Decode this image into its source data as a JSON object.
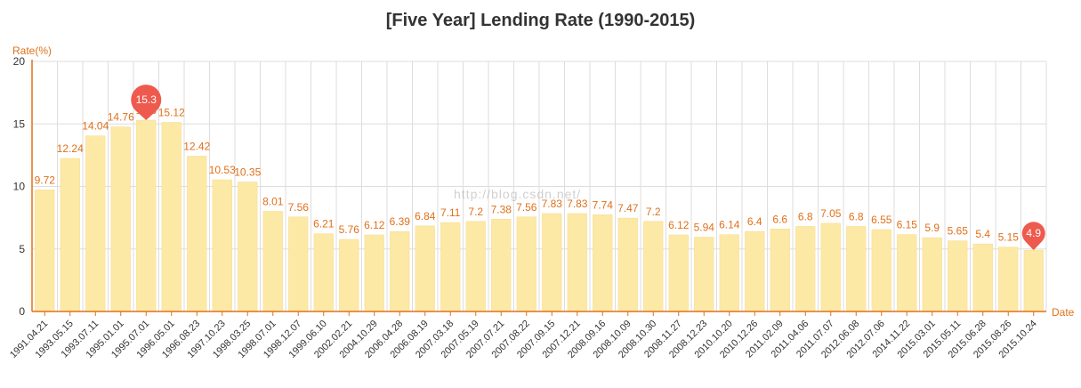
{
  "chart_data": {
    "type": "bar",
    "title": "[Five Year] Lending Rate (1990-2015)",
    "ylabel": "Rate(%)",
    "xlabel": "Date",
    "ylim": [
      0,
      20
    ],
    "yticks": [
      0,
      5,
      10,
      15,
      20
    ],
    "grid": true,
    "categories": [
      "1991.04.21",
      "1993.05.15",
      "1993.07.11",
      "1995.01.01",
      "1995.07.01",
      "1996.05.01",
      "1996.08.23",
      "1997.10.23",
      "1998.03.25",
      "1998.07.01",
      "1998.12.07",
      "1999.06.10",
      "2002.02.21",
      "2004.10.29",
      "2006.04.28",
      "2006.08.19",
      "2007.03.18",
      "2007.05.19",
      "2007.07.21",
      "2007.08.22",
      "2007.09.15",
      "2007.12.21",
      "2008.09.16",
      "2008.10.09",
      "2008.10.30",
      "2008.11.27",
      "2008.12.23",
      "2010.10.20",
      "2010.12.26",
      "2011.02.09",
      "2011.04.06",
      "2011.07.07",
      "2012.06.08",
      "2012.07.06",
      "2014.11.22",
      "2015.03.01",
      "2015.05.11",
      "2015.06.28",
      "2015.08.26",
      "2015.10.24"
    ],
    "values": [
      9.72,
      12.24,
      14.04,
      14.76,
      15.3,
      15.12,
      12.42,
      10.53,
      10.35,
      8.01,
      7.56,
      6.21,
      5.76,
      6.12,
      6.39,
      6.84,
      7.11,
      7.2,
      7.38,
      7.56,
      7.83,
      7.83,
      7.74,
      7.47,
      7.2,
      6.12,
      5.94,
      6.14,
      6.4,
      6.6,
      6.8,
      7.05,
      6.8,
      6.55,
      6.15,
      5.9,
      5.65,
      5.4,
      5.15,
      4.9
    ],
    "markers": [
      {
        "category": "1995.07.01",
        "label": "15.3",
        "kind": "max"
      },
      {
        "category": "2015.10.24",
        "label": "4.9",
        "kind": "min"
      }
    ],
    "colors": {
      "bar": "#fde9a6",
      "bar_stroke": "#f6d98a",
      "label": "#e0701a",
      "axis": "#e0701a",
      "grid": "#dddddd",
      "marker": "#ef5a4e"
    }
  },
  "watermark": "http://blog.csdn.net/"
}
